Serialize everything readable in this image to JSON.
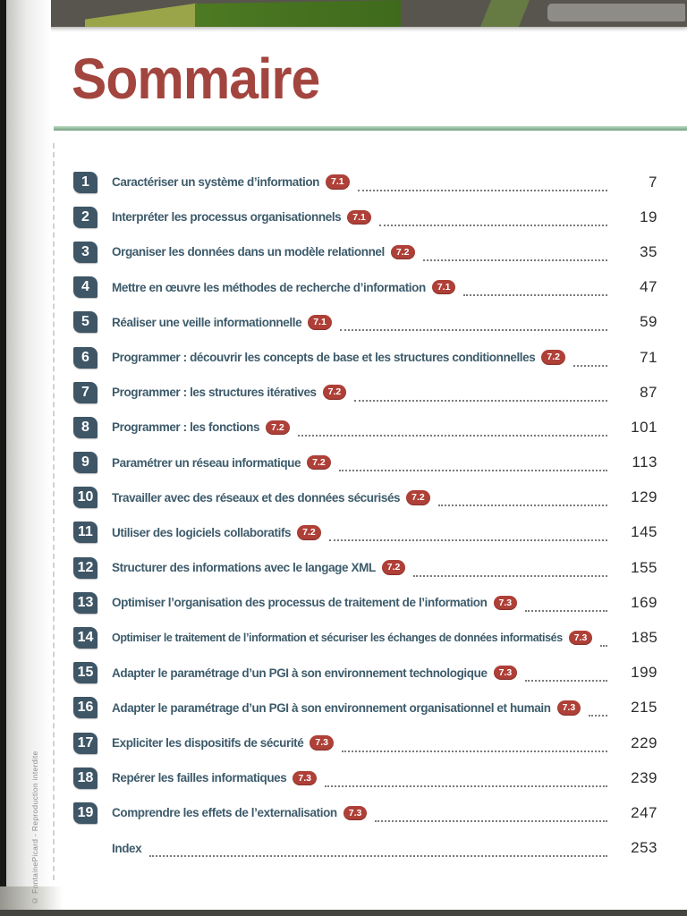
{
  "page": {
    "title": "Sommaire",
    "copyright": "© FontainePicard - Reproduction interdite"
  },
  "colors": {
    "title_red": "#a3453f",
    "chapter_slate": "#3d5b6b",
    "number_badge_slate": "#3e5666",
    "level_badge_red": "#af4038",
    "rule_green": "#73a07c"
  },
  "toc": {
    "entries": [
      {
        "num": "1",
        "title": "Caractériser un système d’information",
        "level": "7.1",
        "page": "7"
      },
      {
        "num": "2",
        "title": "Interpréter les processus organisationnels",
        "level": "7.1",
        "page": "19"
      },
      {
        "num": "3",
        "title": "Organiser les données dans un modèle relationnel",
        "level": "7.2",
        "page": "35"
      },
      {
        "num": "4",
        "title": "Mettre en œuvre les méthodes de recherche d’information",
        "level": "7.1",
        "page": "47"
      },
      {
        "num": "5",
        "title": "Réaliser une veille informationnelle",
        "level": "7.1",
        "page": "59"
      },
      {
        "num": "6",
        "title": "Programmer : découvrir les concepts de base et les structures conditionnelles",
        "level": "7.2",
        "page": "71"
      },
      {
        "num": "7",
        "title": "Programmer : les structures itératives",
        "level": "7.2",
        "page": "87"
      },
      {
        "num": "8",
        "title": "Programmer : les fonctions",
        "level": "7.2",
        "page": "101"
      },
      {
        "num": "9",
        "title": "Paramétrer un réseau informatique",
        "level": "7.2",
        "page": "113"
      },
      {
        "num": "10",
        "title": "Travailler avec des réseaux et des données sécurisés",
        "level": "7.2",
        "page": "129"
      },
      {
        "num": "11",
        "title": "Utiliser des logiciels collaboratifs",
        "level": "7.2",
        "page": "145"
      },
      {
        "num": "12",
        "title": "Structurer des informations avec le langage XML",
        "level": "7.2",
        "page": "155"
      },
      {
        "num": "13",
        "title": "Optimiser l’organisation des processus de traitement de l’information",
        "level": "7.3",
        "page": "169"
      },
      {
        "num": "14",
        "title": "Optimiser le traitement de l’information et sécuriser les échanges de données informatisés",
        "level": "7.3",
        "page": "185"
      },
      {
        "num": "15",
        "title": "Adapter le paramétrage d’un PGI à son environnement technologique",
        "level": "7.3",
        "page": "199"
      },
      {
        "num": "16",
        "title": "Adapter le paramétrage d’un PGI à son environnement organisationnel et humain",
        "level": "7.3",
        "page": "215"
      },
      {
        "num": "17",
        "title": "Expliciter les dispositifs de sécurité",
        "level": "7.3",
        "page": "229"
      },
      {
        "num": "18",
        "title": "Repérer les failles informatiques",
        "level": "7.3",
        "page": "239"
      },
      {
        "num": "19",
        "title": "Comprendre les effets de l’externalisation",
        "level": "7.3",
        "page": "247"
      },
      {
        "num": "",
        "title": "Index",
        "level": "",
        "page": "253"
      }
    ]
  }
}
